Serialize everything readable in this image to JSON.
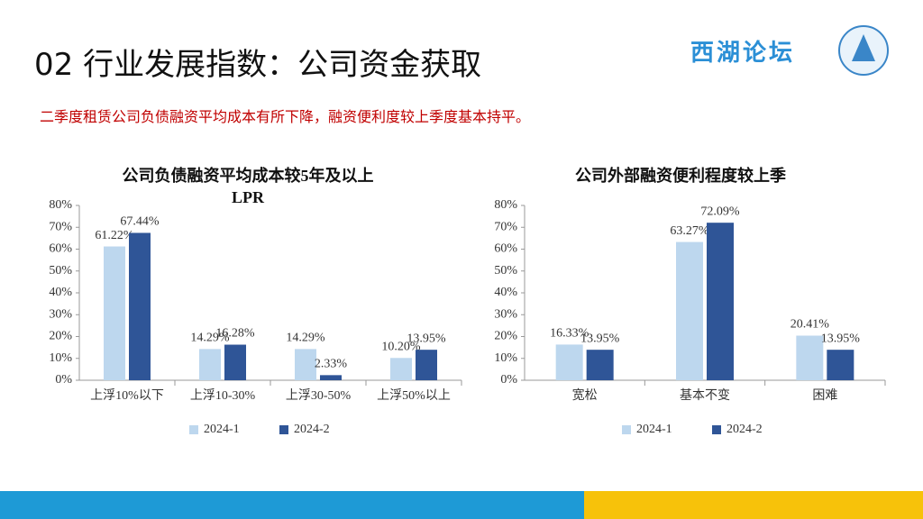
{
  "header": {
    "title": "02 行业发展指数：公司资金获取",
    "logo_text": "西湖论坛",
    "subtitle": "二季度租赁公司负债融资平均成本有所下降，融资便利度较上季度基本持平。"
  },
  "chart_data": [
    {
      "type": "bar",
      "title": "公司负债融资平均成本较5年及以上LPR",
      "categories": [
        "上浮10%以下",
        "上浮10-30%",
        "上浮30-50%",
        "上浮50%以上"
      ],
      "series": [
        {
          "name": "2024-1",
          "color": "#bdd7ee",
          "values": [
            61.22,
            14.29,
            14.29,
            10.2
          ],
          "value_labels": [
            "61.22%",
            "14.29%",
            "14.29%",
            "10.20%"
          ]
        },
        {
          "name": "2024-2",
          "color": "#2f5597",
          "values": [
            67.44,
            16.28,
            2.33,
            13.95
          ],
          "value_labels": [
            "67.44%",
            "16.28%",
            "2.33%",
            "13.95%"
          ]
        }
      ],
      "ylim": [
        0,
        80
      ],
      "yticks": [
        {
          "value": 0,
          "label": "0%"
        },
        {
          "value": 10,
          "label": "10%"
        },
        {
          "value": 20,
          "label": "20%"
        },
        {
          "value": 30,
          "label": "30%"
        },
        {
          "value": 40,
          "label": "40%"
        },
        {
          "value": 50,
          "label": "50%"
        },
        {
          "value": 60,
          "label": "60%"
        },
        {
          "value": 70,
          "label": "70%"
        },
        {
          "value": 80,
          "label": "80%"
        }
      ],
      "grid": false,
      "legend": "bottom"
    },
    {
      "type": "bar",
      "title": "公司外部融资便利程度较上季",
      "categories": [
        "宽松",
        "基本不变",
        "困难"
      ],
      "series": [
        {
          "name": "2024-1",
          "color": "#bdd7ee",
          "values": [
            16.33,
            63.27,
            20.41
          ],
          "value_labels": [
            "16.33%",
            "63.27%",
            "20.41%"
          ]
        },
        {
          "name": "2024-2",
          "color": "#2f5597",
          "values": [
            13.95,
            72.09,
            13.95
          ],
          "value_labels": [
            "13.95%",
            "72.09%",
            "13.95%"
          ]
        }
      ],
      "ylim": [
        0,
        80
      ],
      "yticks": [
        {
          "value": 0,
          "label": "0%"
        },
        {
          "value": 10,
          "label": "10%"
        },
        {
          "value": 20,
          "label": "20%"
        },
        {
          "value": 30,
          "label": "30%"
        },
        {
          "value": 40,
          "label": "40%"
        },
        {
          "value": 50,
          "label": "50%"
        },
        {
          "value": 60,
          "label": "60%"
        },
        {
          "value": 70,
          "label": "70%"
        },
        {
          "value": 80,
          "label": "80%"
        }
      ],
      "grid": false,
      "legend": "bottom"
    }
  ]
}
